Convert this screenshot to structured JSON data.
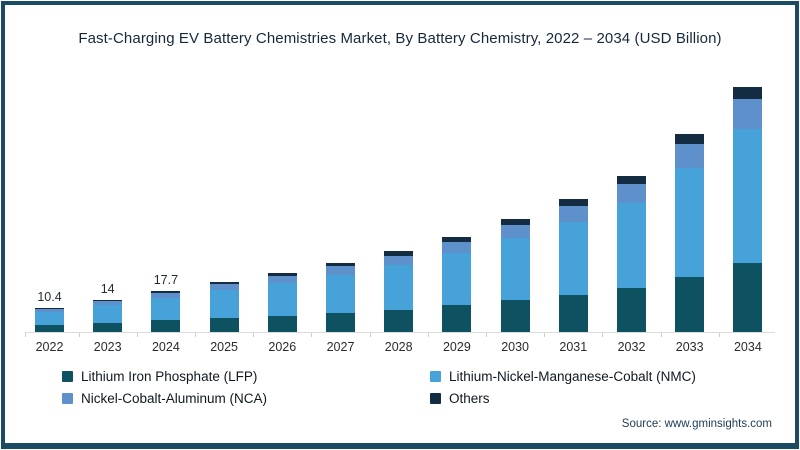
{
  "frame": {
    "title": "Fast-Charging EV Battery Chemistries Market, By Battery Chemistry, 2022 – 2034 (USD Billion)",
    "source": "Source: www.gminsights.com"
  },
  "colors": {
    "lfp": "#0e5160",
    "nmc": "#46a2d9",
    "nca": "#5e91cc",
    "others": "#132c42",
    "frame_border": "#1b4a63",
    "axis": "#dcdcdc"
  },
  "chart_data": {
    "type": "bar",
    "stacked": true,
    "title": "Fast-Charging EV Battery Chemistries Market, By Battery Chemistry, 2022 – 2034 (USD Billion)",
    "xlabel": "",
    "ylabel": "USD Billion",
    "legend_position": "bottom",
    "grid": false,
    "categories": [
      "2022",
      "2023",
      "2024",
      "2025",
      "2026",
      "2027",
      "2028",
      "2029",
      "2030",
      "2031",
      "2032",
      "2033",
      "2034"
    ],
    "series": [
      {
        "name": "Lithium Iron Phosphate (LFP)",
        "color_key": "lfp",
        "values": [
          2.9,
          3.9,
          5.0,
          6.1,
          7.1,
          8.4,
          9.7,
          11.5,
          13.7,
          16.1,
          18.8,
          23.9,
          29.6
        ]
      },
      {
        "name": "Lithium-Nickel-Manganese-Cobalt (NMC)",
        "color_key": "nmc",
        "values": [
          5.7,
          7.7,
          9.7,
          11.9,
          14.0,
          16.4,
          19.1,
          22.6,
          26.8,
          31.6,
          37.0,
          47.0,
          58.2
        ]
      },
      {
        "name": "Nickel-Cobalt-Aluminum (NCA)",
        "color_key": "nca",
        "values": [
          1.2,
          1.7,
          2.1,
          2.6,
          3.1,
          3.6,
          4.2,
          4.9,
          5.9,
          6.9,
          8.1,
          10.3,
          12.7
        ]
      },
      {
        "name": "Others",
        "color_key": "others",
        "values": [
          0.6,
          0.7,
          0.9,
          1.1,
          1.3,
          1.5,
          1.8,
          2.1,
          2.4,
          2.9,
          3.3,
          4.3,
          5.3
        ]
      }
    ],
    "totals": [
      10.4,
      14.0,
      17.7,
      21.7,
      25.5,
      29.9,
      34.8,
      41.1,
      48.8,
      57.5,
      67.2,
      85.5,
      105.8
    ],
    "value_labels": [
      "10.4",
      "14",
      "17.7"
    ]
  },
  "legend": {
    "items": [
      {
        "label": "Lithium Iron Phosphate (LFP)",
        "color_key": "lfp"
      },
      {
        "label": "Lithium-Nickel-Manganese-Cobalt (NMC)",
        "color_key": "nmc"
      },
      {
        "label": "Nickel-Cobalt-Aluminum (NCA)",
        "color_key": "nca"
      },
      {
        "label": "Others",
        "color_key": "others"
      }
    ]
  }
}
